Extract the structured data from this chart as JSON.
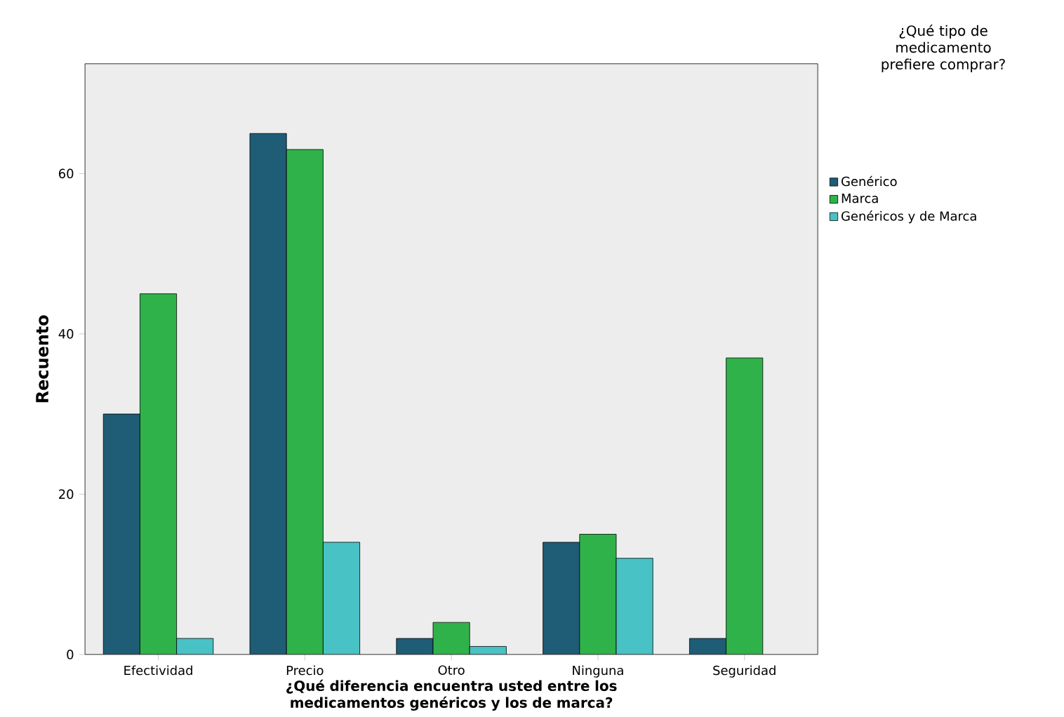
{
  "chart_data": {
    "type": "bar",
    "xlabel": "¿Qué diferencia encuentra usted entre los medicamentos genéricos y los de marca?",
    "ylabel": "Recuento",
    "legend_title": "¿Qué tipo de medicamento prefiere comprar?",
    "categories": [
      "Efectividad",
      "Precio",
      "Otro",
      "Ninguna",
      "Seguridad"
    ],
    "series": [
      {
        "name": "Genérico",
        "color": "#1f5c75",
        "values": [
          30,
          65,
          2,
          14,
          2
        ]
      },
      {
        "name": "Marca",
        "color": "#2fb24a",
        "values": [
          45,
          63,
          4,
          15,
          37
        ]
      },
      {
        "name": "Genéricos y de Marca",
        "color": "#48c2c5",
        "values": [
          2,
          14,
          1,
          12,
          null
        ]
      }
    ],
    "ylim": [
      0,
      73.7
    ],
    "yticks": [
      0,
      20,
      40,
      60
    ],
    "legend": "right"
  }
}
